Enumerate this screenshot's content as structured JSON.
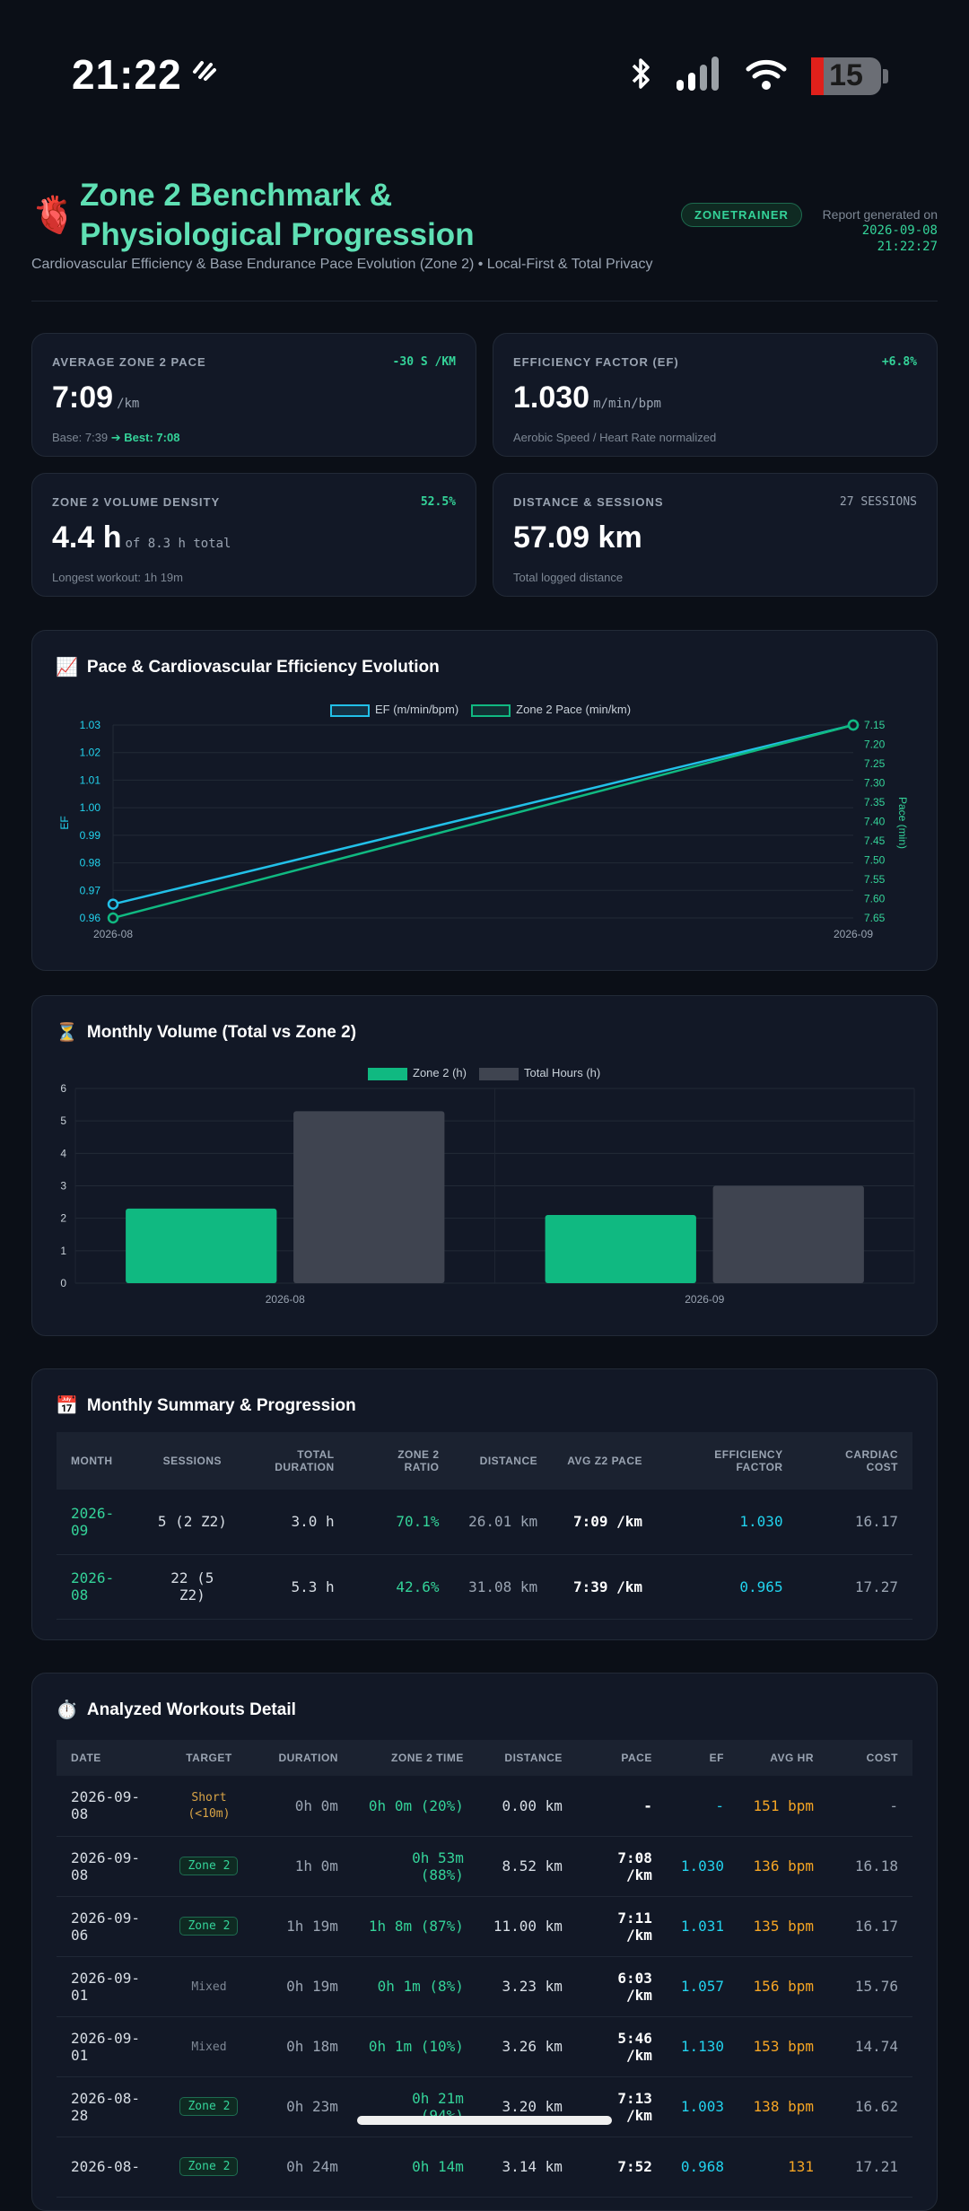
{
  "status_bar": {
    "time": "21:22",
    "battery": "15"
  },
  "header": {
    "title": "Zone 2 Benchmark & Physiological Progression",
    "badge": "ZONETRAINER",
    "generated_label": "Report generated on",
    "generated_date": "2026-09-08",
    "generated_time": "21:22:27",
    "subtitle": "Cardiovascular Efficiency & Base Endurance Pace Evolution (Zone 2) • Local-First & Total Privacy"
  },
  "kpis": {
    "pace": {
      "label": "AVERAGE ZONE 2 PACE",
      "delta": "-30 S /KM",
      "value": "7:09",
      "unit": "/km",
      "foot_base": "Base: 7:39",
      "foot_best": "➔ Best: 7:08"
    },
    "ef": {
      "label": "EFFICIENCY FACTOR (EF)",
      "delta": "+6.8%",
      "value": "1.030",
      "unit": "m/min/bpm",
      "foot": "Aerobic Speed / Heart Rate normalized"
    },
    "volume": {
      "label": "ZONE 2 VOLUME DENSITY",
      "delta": "52.5%",
      "value": "4.4 h",
      "unit": "of 8.3 h total",
      "foot": "Longest workout: 1h 19m"
    },
    "distance": {
      "label": "DISTANCE & SESSIONS",
      "delta": "27 SESSIONS",
      "value": "57.09 km",
      "foot": "Total logged distance"
    }
  },
  "pace_chart": {
    "title": "Pace & Cardiovascular Efficiency Evolution",
    "icon": "chart-increasing-icon",
    "legend_ef": "EF (m/min/bpm)",
    "legend_pace": "Zone 2 Pace (min/km)",
    "ylabel_left": "EF",
    "ylabel_right": "Pace (min)"
  },
  "volume_chart": {
    "title": "Monthly Volume (Total vs Zone 2)",
    "icon": "hourglass-icon",
    "legend_z2": "Zone 2 (h)",
    "legend_total": "Total Hours (h)"
  },
  "chart_data": [
    {
      "type": "line",
      "x": [
        "2026-08",
        "2026-09"
      ],
      "series": [
        {
          "name": "EF (m/min/bpm)",
          "axis": "left",
          "values": [
            0.965,
            1.03
          ],
          "color": "#22c0e8"
        },
        {
          "name": "Zone 2 Pace (min/km)",
          "axis": "right",
          "values": [
            7.65,
            7.15
          ],
          "color": "#10b981"
        }
      ],
      "ylabel": "EF",
      "ylabel_right": "Pace (min)",
      "yticks_left": [
        "1.03",
        "1.02",
        "1.01",
        "1.00",
        "0.99",
        "0.98",
        "0.97",
        "0.96"
      ],
      "yticks_right": [
        "7.15",
        "7.20",
        "7.25",
        "7.30",
        "7.35",
        "7.40",
        "7.45",
        "7.50",
        "7.55",
        "7.60",
        "7.65"
      ],
      "ylim_left": [
        0.96,
        1.03
      ],
      "ylim_right": [
        7.15,
        7.65
      ],
      "right_axis_inverted": true,
      "grid": true,
      "legend": "top-center"
    },
    {
      "type": "bar",
      "categories": [
        "2026-08",
        "2026-09"
      ],
      "series": [
        {
          "name": "Zone 2 (h)",
          "values": [
            2.3,
            2.1
          ],
          "color": "#10b981"
        },
        {
          "name": "Total Hours (h)",
          "values": [
            5.3,
            3.0
          ],
          "color": "#3f4450"
        }
      ],
      "yticks": [
        "0",
        "1",
        "2",
        "3",
        "4",
        "5",
        "6"
      ],
      "ylim": [
        0,
        6
      ],
      "grid": true,
      "legend": "top-center"
    }
  ],
  "summary": {
    "title": "Monthly Summary & Progression",
    "icon": "calendar-icon",
    "headers": [
      "MONTH",
      "SESSIONS",
      "TOTAL DURATION",
      "ZONE 2 RATIO",
      "DISTANCE",
      "AVG Z2 PACE",
      "EFFICIENCY FACTOR",
      "CARDIAC COST"
    ],
    "rows": [
      {
        "month": "2026-09",
        "sessions": "5 (2 Z2)",
        "duration": "3.0 h",
        "ratio": "70.1%",
        "distance": "26.01 km",
        "pace": "7:09 /km",
        "ef": "1.030",
        "cost": "16.17"
      },
      {
        "month": "2026-08",
        "sessions": "22 (5 Z2)",
        "duration": "5.3 h",
        "ratio": "42.6%",
        "distance": "31.08 km",
        "pace": "7:39 /km",
        "ef": "0.965",
        "cost": "17.27"
      }
    ]
  },
  "workouts": {
    "title": "Analyzed Workouts Detail",
    "icon": "stopwatch-icon",
    "headers": [
      "DATE",
      "TARGET",
      "DURATION",
      "ZONE 2 TIME",
      "DISTANCE",
      "PACE",
      "EF",
      "AVG HR",
      "COST"
    ],
    "rows": [
      {
        "date": "2026-09-08",
        "target": "Short (<10m)",
        "kind": "short",
        "duration": "0h 0m",
        "z2": "0h 0m (20%)",
        "distance": "0.00 km",
        "pace": "-",
        "ef": "-",
        "hr": "151 bpm",
        "cost": "-"
      },
      {
        "date": "2026-09-08",
        "target": "Zone 2",
        "kind": "zone2",
        "duration": "1h 0m",
        "z2": "0h 53m (88%)",
        "distance": "8.52 km",
        "pace": "7:08 /km",
        "ef": "1.030",
        "hr": "136 bpm",
        "cost": "16.18"
      },
      {
        "date": "2026-09-06",
        "target": "Zone 2",
        "kind": "zone2",
        "duration": "1h 19m",
        "z2": "1h 8m (87%)",
        "distance": "11.00 km",
        "pace": "7:11 /km",
        "ef": "1.031",
        "hr": "135 bpm",
        "cost": "16.17"
      },
      {
        "date": "2026-09-01",
        "target": "Mixed",
        "kind": "mixed",
        "duration": "0h 19m",
        "z2": "0h 1m (8%)",
        "distance": "3.23 km",
        "pace": "6:03 /km",
        "ef": "1.057",
        "hr": "156 bpm",
        "cost": "15.76"
      },
      {
        "date": "2026-09-01",
        "target": "Mixed",
        "kind": "mixed",
        "duration": "0h 18m",
        "z2": "0h 1m (10%)",
        "distance": "3.26 km",
        "pace": "5:46 /km",
        "ef": "1.130",
        "hr": "153 bpm",
        "cost": "14.74"
      },
      {
        "date": "2026-08-28",
        "target": "Zone 2",
        "kind": "zone2",
        "duration": "0h 23m",
        "z2": "0h 21m (94%)",
        "distance": "3.20 km",
        "pace": "7:13 /km",
        "ef": "1.003",
        "hr": "138 bpm",
        "cost": "16.62"
      },
      {
        "date": "2026-08-",
        "target": "Zone 2",
        "kind": "zone2",
        "duration": "0h 24m",
        "z2": "0h 14m",
        "distance": "3.14 km",
        "pace": "7:52",
        "ef": "0.968",
        "hr": "131",
        "cost": "17.21"
      }
    ]
  },
  "colors": {
    "accent": "#34d399",
    "ef": "#22d3ee",
    "hr": "#f5a524",
    "background": "#0b0f17",
    "card": "#121826"
  }
}
